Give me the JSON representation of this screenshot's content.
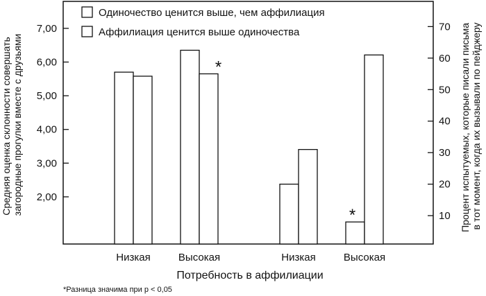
{
  "chart_data": {
    "type": "bar",
    "xlabel": "Потребность в аффилиации",
    "ylabel_left": [
      "Средняя оценка склонности совершать",
      "загородные прогулки вместе с друзьями"
    ],
    "ylabel_right": [
      "Процент испытуемых, которые писали письма",
      "в тот момент, когда их вызывали по пейджеру"
    ],
    "left_axis": {
      "ticks": [
        "2,00",
        "3,00",
        "4,00",
        "5,00",
        "6,00",
        "7,00"
      ],
      "tick_values": [
        2,
        3,
        4,
        5,
        6,
        7
      ],
      "ylim": [
        0.6,
        7.8
      ]
    },
    "right_axis": {
      "ticks": [
        "10",
        "20",
        "30",
        "40",
        "50",
        "60",
        "70"
      ],
      "tick_values": [
        10,
        20,
        30,
        40,
        50,
        60,
        70
      ],
      "ylim": [
        1,
        78
      ]
    },
    "legend": [
      {
        "name": "Одиночество ценится выше, чем аффилиация",
        "fill": "#ffffff"
      },
      {
        "name": "Аффилиация ценится выше одиночества",
        "fill": "#ffffff"
      }
    ],
    "legend_position": "top-left",
    "grid": false,
    "groups": [
      {
        "axis": "left",
        "categories": [
          "Низкая",
          "Высокая"
        ],
        "series": [
          {
            "values": [
              5.7,
              6.35
            ]
          },
          {
            "values": [
              5.58,
              5.65
            ]
          }
        ],
        "significant": [
          {
            "category": 1,
            "series": 1
          }
        ]
      },
      {
        "axis": "right",
        "categories": [
          "Низкая",
          "Высокая"
        ],
        "series": [
          {
            "values": [
              20,
              8
            ]
          },
          {
            "values": [
              31,
              61
            ]
          }
        ],
        "significant": [
          {
            "category": 1,
            "series": 0
          }
        ]
      }
    ],
    "significance_marker": "*",
    "footnote": "*Разница значима при p < 0,05"
  }
}
